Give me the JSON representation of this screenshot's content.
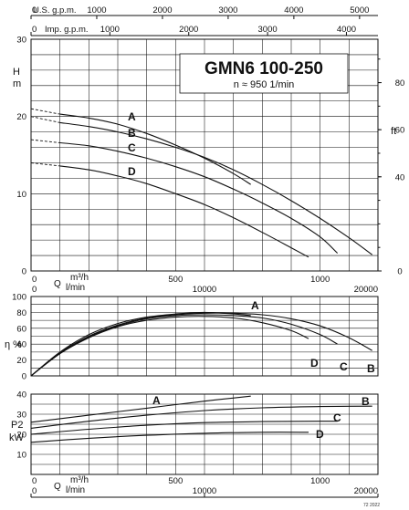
{
  "chart_data": [
    {
      "id": "head",
      "type": "line",
      "title": "GMN6 100-250",
      "subtitle": "n ≈ 950 1/min",
      "ylabel_lines": [
        "H",
        "m"
      ],
      "ylabel_right": "ft",
      "ylim": [
        0,
        30
      ],
      "yticks": [
        0,
        10,
        20,
        30
      ],
      "yticks_right": [
        {
          "value": 0,
          "pos": 0
        },
        {
          "value": 40,
          "pos": 12.19
        },
        {
          "value": 60,
          "pos": 18.29
        },
        {
          "value": 80,
          "pos": 24.38
        }
      ],
      "top_axis_usgpm": {
        "label": "U.S. g.p.m.",
        "ticks": [
          0,
          1000,
          2000,
          3000,
          4000,
          5000
        ]
      },
      "top_axis_impgpm": {
        "label": "Imp. g.p.m.",
        "ticks": [
          0,
          1000,
          2000,
          3000,
          4000
        ]
      },
      "xlim_m3h": [
        0,
        1200
      ],
      "series": [
        {
          "name": "A",
          "dashed": [
            [
              0,
              21
            ],
            [
              100,
              20.3
            ]
          ],
          "x": [
            100,
            200,
            300,
            400,
            500,
            600,
            700,
            760
          ],
          "y": [
            20.3,
            19.8,
            19,
            17.8,
            16.3,
            14.6,
            12.6,
            11.2
          ]
        },
        {
          "name": "B",
          "dashed": [
            [
              0,
              20
            ],
            [
              100,
              19.2
            ]
          ],
          "x": [
            100,
            200,
            300,
            400,
            500,
            600,
            700,
            800,
            900,
            1000,
            1100,
            1180
          ],
          "y": [
            19.2,
            18.7,
            18,
            17.1,
            16,
            14.7,
            13.1,
            11.2,
            9.1,
            6.8,
            4.3,
            2.1
          ]
        },
        {
          "name": "C",
          "dashed": [
            [
              0,
              17
            ],
            [
              100,
              16.6
            ]
          ],
          "x": [
            100,
            200,
            300,
            400,
            500,
            600,
            700,
            800,
            900,
            1000,
            1060
          ],
          "y": [
            16.6,
            16.2,
            15.5,
            14.6,
            13.5,
            12.2,
            10.6,
            8.8,
            6.8,
            4.4,
            2.3
          ]
        },
        {
          "name": "D",
          "dashed": [
            [
              0,
              14
            ],
            [
              100,
              13.6
            ]
          ],
          "x": [
            100,
            200,
            300,
            400,
            500,
            600,
            700,
            800,
            900,
            960
          ],
          "y": [
            13.6,
            13.1,
            12.3,
            11.3,
            10,
            8.6,
            6.9,
            5,
            3,
            1.8
          ]
        }
      ]
    },
    {
      "id": "efficiency",
      "type": "line",
      "ylabel": "η %",
      "ylim": [
        0,
        100
      ],
      "yticks": [
        0,
        20,
        40,
        60,
        80,
        100
      ],
      "xaxis_m3h": {
        "label": "Q  m³/h",
        "ticks": [
          0,
          500,
          1000
        ]
      },
      "xaxis_lmin": {
        "label": "l/min",
        "ticks": [
          0,
          10000,
          20000
        ]
      },
      "series": [
        {
          "name": "A",
          "x": [
            0,
            100,
            200,
            300,
            400,
            500,
            600,
            700,
            760
          ],
          "y": [
            0,
            30,
            52,
            66,
            74,
            78,
            80,
            78,
            76
          ]
        },
        {
          "name": "B",
          "x": [
            0,
            100,
            200,
            300,
            400,
            500,
            600,
            700,
            800,
            900,
            1000,
            1100,
            1180
          ],
          "y": [
            0,
            29,
            50,
            64,
            73,
            77,
            79,
            79,
            77,
            72,
            63,
            48,
            32
          ]
        },
        {
          "name": "C",
          "x": [
            0,
            100,
            200,
            300,
            400,
            500,
            600,
            700,
            800,
            900,
            1000,
            1060
          ],
          "y": [
            0,
            28,
            49,
            63,
            72,
            76,
            77,
            76,
            73,
            65,
            52,
            40
          ]
        },
        {
          "name": "D",
          "x": [
            0,
            100,
            200,
            300,
            400,
            500,
            600,
            700,
            800,
            900,
            960
          ],
          "y": [
            0,
            28,
            48,
            62,
            70,
            74,
            75,
            73,
            67,
            57,
            47
          ]
        }
      ]
    },
    {
      "id": "power",
      "type": "line",
      "ylabel_lines": [
        "P2",
        "kW"
      ],
      "ylim": [
        0,
        40
      ],
      "yticks": [
        10,
        20,
        30,
        40
      ],
      "xaxis_m3h": {
        "label": "Q  m³/h",
        "ticks": [
          0,
          500,
          1000
        ]
      },
      "xaxis_lmin": {
        "label": "l/min",
        "ticks": [
          0,
          10000,
          20000
        ]
      },
      "series": [
        {
          "name": "A",
          "x": [
            0,
            200,
            400,
            600,
            760
          ],
          "y": [
            26,
            29.5,
            33,
            36.5,
            39
          ]
        },
        {
          "name": "B",
          "x": [
            0,
            200,
            400,
            600,
            800,
            1000,
            1180
          ],
          "y": [
            23,
            26.5,
            29.5,
            31.8,
            33.2,
            33.8,
            34
          ]
        },
        {
          "name": "C",
          "x": [
            0,
            200,
            400,
            600,
            800,
            1000,
            1060
          ],
          "y": [
            20,
            22.5,
            24.5,
            25.8,
            26.3,
            26.5,
            26.5
          ]
        },
        {
          "name": "D",
          "x": [
            0,
            200,
            400,
            600,
            800,
            960
          ],
          "y": [
            16,
            18,
            19.5,
            20.5,
            21,
            21
          ]
        }
      ]
    }
  ],
  "footer_code": "72 2022"
}
